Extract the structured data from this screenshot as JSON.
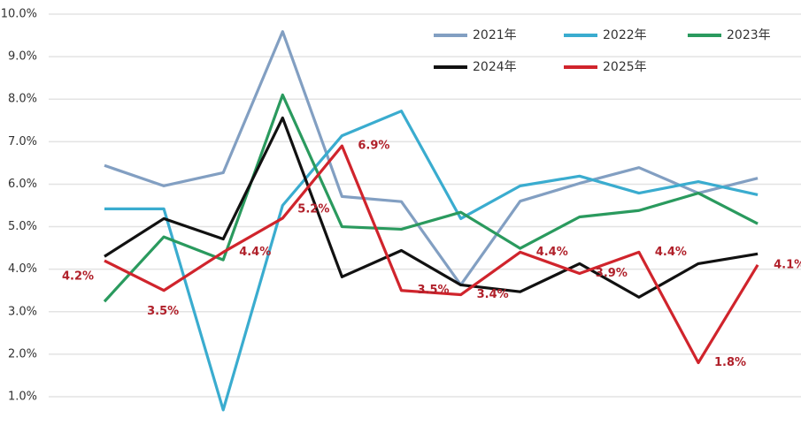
{
  "chart_data": {
    "type": "line",
    "categories": [
      null,
      null,
      null,
      null,
      null,
      null,
      null,
      null,
      null,
      null,
      null,
      null
    ],
    "series": [
      {
        "name": "2021年",
        "color": "#829fc2",
        "values": [
          6.44,
          5.96,
          6.27,
          9.59,
          5.71,
          5.59,
          3.63,
          5.6,
          6.02,
          6.39,
          5.79,
          6.14
        ]
      },
      {
        "name": "2022年",
        "color": "#3aaccf",
        "values": [
          5.42,
          5.42,
          0.69,
          5.5,
          7.14,
          7.72,
          5.19,
          5.96,
          6.19,
          5.79,
          6.06,
          5.75
        ]
      },
      {
        "name": "2023年",
        "color": "#2a9a5e",
        "values": [
          3.24,
          4.76,
          4.22,
          8.1,
          5.0,
          4.94,
          5.34,
          4.49,
          5.23,
          5.38,
          5.79,
          5.07
        ]
      },
      {
        "name": "2024年",
        "color": "#111111",
        "values": [
          4.3,
          5.19,
          4.71,
          7.56,
          3.82,
          4.44,
          3.63,
          3.47,
          4.13,
          3.34,
          4.13,
          4.36
        ]
      },
      {
        "name": "2025年",
        "color": "#d0242c",
        "values": [
          4.2,
          3.5,
          4.4,
          5.2,
          6.9,
          3.5,
          3.4,
          4.4,
          3.9,
          4.4,
          1.8,
          4.1
        ],
        "value_labels": [
          "4.2%",
          "3.5%",
          "4.4%",
          "5.2%",
          "6.9%",
          "3.5%",
          "3.4%",
          "4.4%",
          "3.9%",
          "4.4%",
          "1.8%",
          "4.1%"
        ]
      }
    ],
    "ylim": [
      0.35,
      10.1
    ],
    "yticks": [
      {
        "value": 1,
        "label": "1.0%"
      },
      {
        "value": 2,
        "label": "2.0%"
      },
      {
        "value": 3,
        "label": "3.0%"
      },
      {
        "value": 4,
        "label": "4.0%"
      },
      {
        "value": 5,
        "label": "5.0%"
      },
      {
        "value": 6,
        "label": "6.0%"
      },
      {
        "value": 7,
        "label": "7.0%"
      },
      {
        "value": 8,
        "label": "8.0%"
      },
      {
        "value": 9,
        "label": "9.0%"
      },
      {
        "value": 10,
        "label": "10.0%"
      }
    ],
    "grid": true,
    "legend": "upper right"
  }
}
